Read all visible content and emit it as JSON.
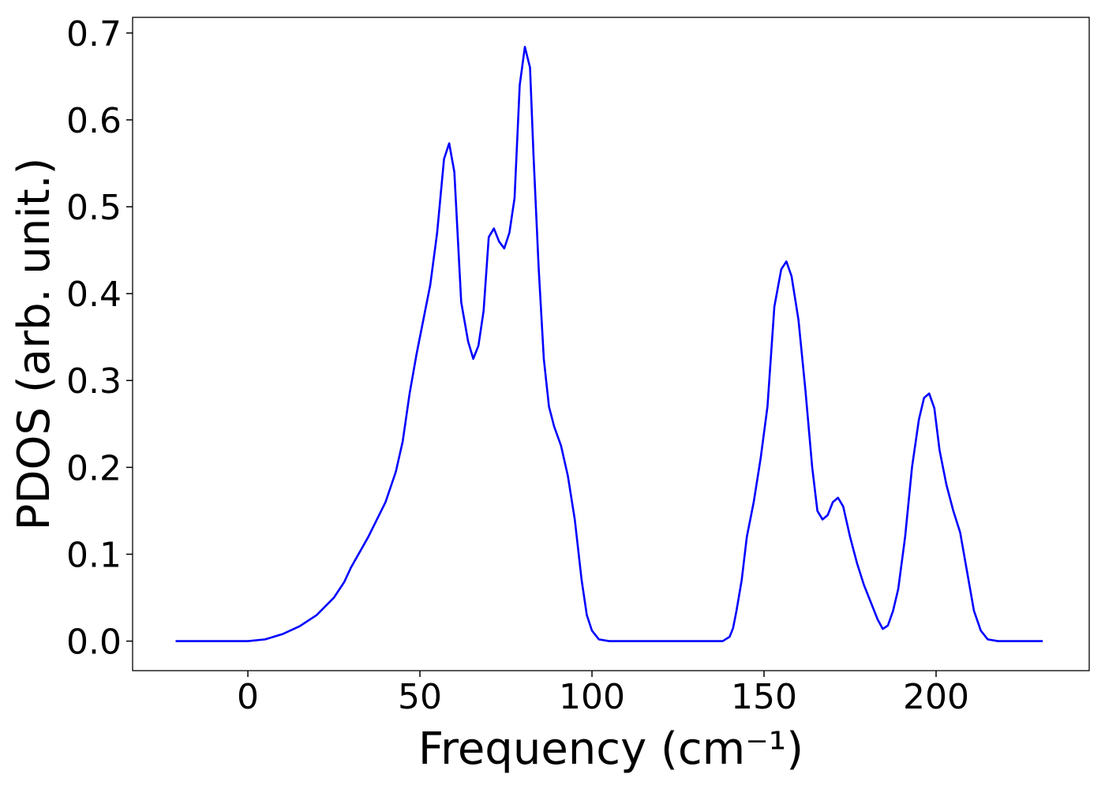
{
  "chart_data": {
    "type": "line",
    "xlabel": "Frequency (cm⁻¹)",
    "ylabel": "PDOS (arb. unit.)",
    "xlim": [
      -33.5,
      244.5
    ],
    "ylim": [
      -0.034,
      0.718
    ],
    "xticks": [
      0,
      50,
      100,
      150,
      200
    ],
    "yticks": [
      {
        "value": 0,
        "label": "0.0"
      },
      0.1,
      0.2,
      0.3,
      0.4,
      0.5,
      0.6,
      0.7
    ],
    "grid": false,
    "series": [
      {
        "color": "#0000ff",
        "x": [
          -21,
          0,
          5,
          10,
          15,
          20,
          25,
          28,
          30,
          35,
          40,
          43,
          45,
          47,
          49,
          51,
          53,
          55,
          57,
          58.5,
          60,
          62,
          64,
          65.5,
          67,
          68.5,
          70,
          71.5,
          73,
          74.5,
          76,
          77.5,
          79,
          80.5,
          82,
          83,
          84.5,
          86,
          87.5,
          89,
          91,
          93,
          95,
          97,
          98.5,
          100,
          102,
          105,
          138,
          140,
          141,
          142,
          143.5,
          145,
          147,
          149,
          151,
          153,
          155,
          156.5,
          158,
          160,
          162,
          164,
          165.5,
          167,
          168.5,
          170,
          171.5,
          173,
          175,
          177,
          179,
          181,
          183,
          184.5,
          186,
          187.5,
          189,
          191,
          193,
          195,
          196.5,
          198,
          199.5,
          201,
          203,
          205,
          207,
          209,
          211,
          213,
          215,
          218,
          231
        ],
        "values": [
          0,
          0,
          0.002,
          0.008,
          0.017,
          0.03,
          0.05,
          0.068,
          0.085,
          0.12,
          0.16,
          0.195,
          0.23,
          0.285,
          0.33,
          0.37,
          0.41,
          0.47,
          0.555,
          0.573,
          0.54,
          0.39,
          0.345,
          0.325,
          0.34,
          0.38,
          0.465,
          0.475,
          0.46,
          0.452,
          0.47,
          0.51,
          0.64,
          0.684,
          0.66,
          0.56,
          0.43,
          0.325,
          0.27,
          0.247,
          0.225,
          0.19,
          0.14,
          0.07,
          0.03,
          0.012,
          0.002,
          0,
          0,
          0.005,
          0.015,
          0.035,
          0.07,
          0.12,
          0.16,
          0.21,
          0.27,
          0.385,
          0.428,
          0.437,
          0.42,
          0.37,
          0.29,
          0.2,
          0.15,
          0.14,
          0.145,
          0.16,
          0.165,
          0.155,
          0.12,
          0.09,
          0.065,
          0.045,
          0.025,
          0.014,
          0.018,
          0.035,
          0.06,
          0.12,
          0.2,
          0.255,
          0.28,
          0.285,
          0.268,
          0.22,
          0.18,
          0.15,
          0.125,
          0.08,
          0.035,
          0.012,
          0.002,
          0,
          0
        ]
      }
    ]
  }
}
